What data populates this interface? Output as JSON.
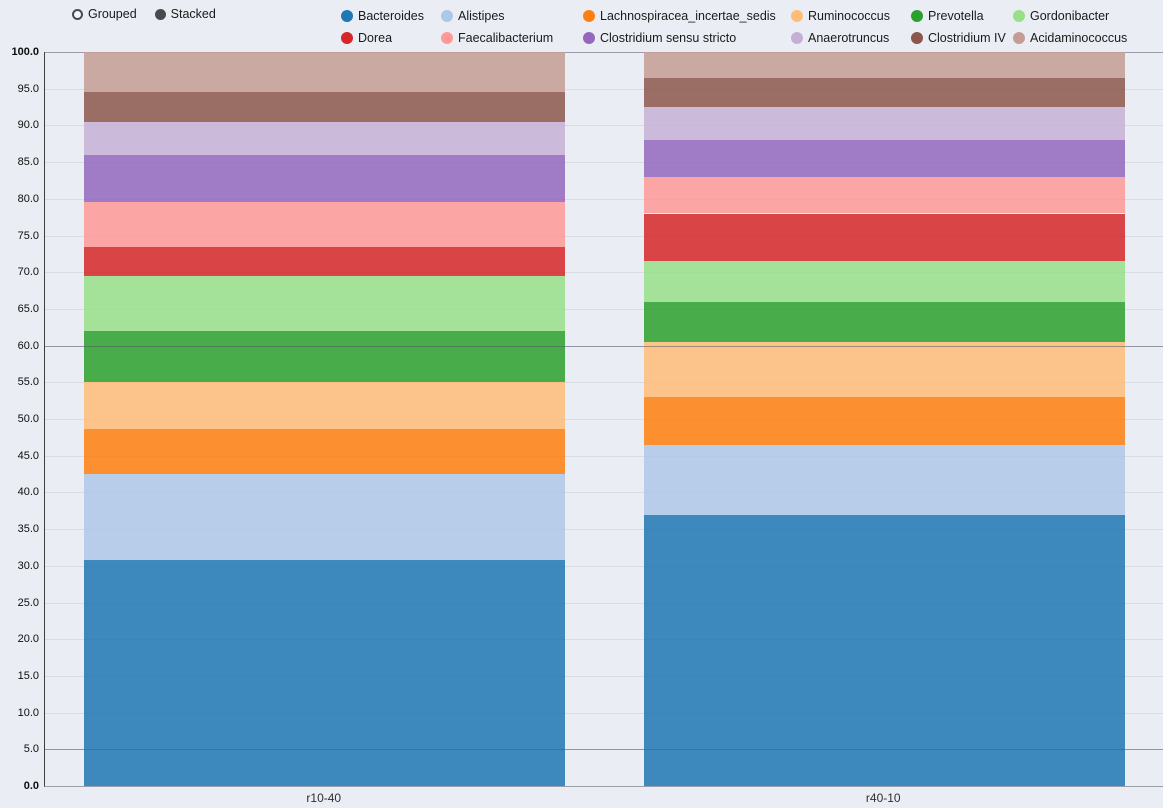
{
  "controls": {
    "mode_options": [
      {
        "label": "Grouped",
        "selected": false
      },
      {
        "label": "Stacked",
        "selected": true
      }
    ]
  },
  "chart_data": {
    "type": "bar",
    "stacked": true,
    "legend_position": "top",
    "grid": true,
    "categories": [
      "r10-40",
      "r40-10"
    ],
    "ylim": [
      0,
      100
    ],
    "ytick_step": 5,
    "ytick_labels": [
      "0.0",
      "5.0",
      "10.0",
      "15.0",
      "20.0",
      "25.0",
      "30.0",
      "35.0",
      "40.0",
      "45.0",
      "50.0",
      "55.0",
      "60.0",
      "65.0",
      "70.0",
      "75.0",
      "80.0",
      "85.0",
      "90.0",
      "95.0",
      "100.0"
    ],
    "reference_lines": [
      60,
      5
    ],
    "bar_opacity": 0.85,
    "series": [
      {
        "name": "Bacteroides",
        "color": "#1f77b4",
        "values": [
          30.8,
          36.9
        ]
      },
      {
        "name": "Alistipes",
        "color": "#aec7e8",
        "values": [
          11.7,
          9.6
        ]
      },
      {
        "name": "Lachnospiracea_incertae_sedis",
        "color": "#ff7f0e",
        "values": [
          6.2,
          6.5
        ]
      },
      {
        "name": "Ruminococcus",
        "color": "#ffbb78",
        "values": [
          6.3,
          7.5
        ]
      },
      {
        "name": "Prevotella",
        "color": "#2ca02c",
        "values": [
          7.0,
          5.5
        ]
      },
      {
        "name": "Gordonibacter",
        "color": "#98df8a",
        "values": [
          7.5,
          5.5
        ]
      },
      {
        "name": "Dorea",
        "color": "#d62728",
        "values": [
          4.0,
          6.5
        ]
      },
      {
        "name": "Faecalibacterium",
        "color": "#ff9896",
        "values": [
          6.0,
          5.0
        ]
      },
      {
        "name": "Clostridium sensu stricto",
        "color": "#9467bd",
        "values": [
          6.5,
          5.0
        ]
      },
      {
        "name": "Anaerotruncus",
        "color": "#c5b0d5",
        "values": [
          4.5,
          4.5
        ]
      },
      {
        "name": "Clostridium IV",
        "color": "#8c564b",
        "values": [
          4.0,
          4.0
        ]
      },
      {
        "name": "Acidaminococcus",
        "color": "#c49c94",
        "values": [
          5.5,
          3.5
        ]
      }
    ]
  }
}
